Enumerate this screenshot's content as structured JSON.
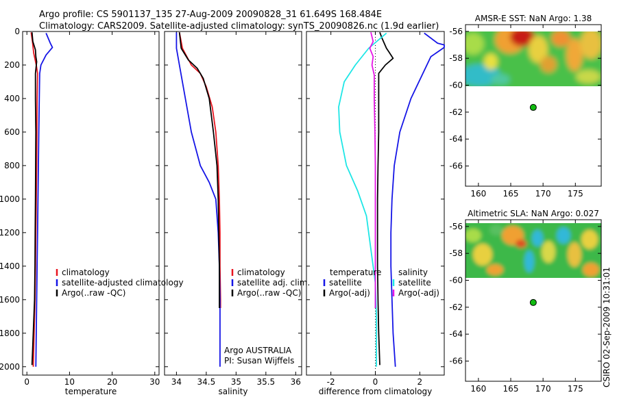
{
  "header": {
    "line1": "Argo profile: CS 5901137_135 27-Aug-2009 20090828_31 61.649S 168.484E",
    "line2": "Climatology: CARS2009. Satellite-adjusted climatology: synTS_20090826.nc (1.9d earlier)"
  },
  "footer": {
    "stamp": "CSIRO 02-Sep-2009 10:31:01"
  },
  "colors": {
    "red": "#e8141e",
    "blue": "#1414e6",
    "black": "#000000",
    "cyan": "#1ee6e6",
    "magenta": "#e614e6",
    "marker": "#11bb11"
  },
  "chart_data": [
    {
      "id": "temperature",
      "type": "line",
      "xlabel": "temperature",
      "xlim": [
        -1,
        31
      ],
      "ylim": [
        2050,
        0
      ],
      "xticks": [
        "0",
        "10",
        "20",
        "30"
      ],
      "yticks": [
        "0",
        "200",
        "400",
        "600",
        "800",
        "1000",
        "1200",
        "1400",
        "1600",
        "1800",
        "2000"
      ],
      "legend": [
        "climatology",
        "satellite-adjusted climatology",
        "Argo(..raw -QC)"
      ],
      "legend_placement": "lower-right",
      "series": [
        {
          "name": "climatology",
          "color": "red",
          "points": [
            [
              1.0,
              5
            ],
            [
              1.3,
              60
            ],
            [
              1.6,
              130
            ],
            [
              2.2,
              200
            ],
            [
              2.5,
              250
            ],
            [
              2.4,
              400
            ],
            [
              2.35,
              600
            ],
            [
              2.3,
              800
            ],
            [
              2.2,
              1000
            ],
            [
              2.1,
              1200
            ],
            [
              2.0,
              1400
            ],
            [
              1.9,
              1600
            ],
            [
              1.7,
              1800
            ],
            [
              1.5,
              2000
            ]
          ]
        },
        {
          "name": "satellite-adjusted climatology",
          "color": "blue",
          "points": [
            [
              4.5,
              10
            ],
            [
              5.5,
              70
            ],
            [
              6.0,
              95
            ],
            [
              4.5,
              140
            ],
            [
              3.3,
              200
            ],
            [
              3.0,
              250
            ],
            [
              2.9,
              400
            ],
            [
              2.8,
              600
            ],
            [
              2.7,
              800
            ],
            [
              2.6,
              1000
            ],
            [
              2.5,
              1200
            ],
            [
              2.4,
              1400
            ],
            [
              2.3,
              1600
            ],
            [
              2.2,
              1800
            ],
            [
              2.1,
              2000
            ]
          ]
        },
        {
          "name": "Argo(..raw -QC)",
          "color": "black",
          "points": [
            [
              1.2,
              5
            ],
            [
              1.4,
              60
            ],
            [
              2.0,
              110
            ],
            [
              2.1,
              150
            ],
            [
              2.3,
              180
            ],
            [
              2.0,
              250
            ],
            [
              2.0,
              400
            ],
            [
              2.1,
              600
            ],
            [
              2.05,
              800
            ],
            [
              2.0,
              1000
            ],
            [
              1.95,
              1200
            ],
            [
              1.9,
              1400
            ],
            [
              1.8,
              1600
            ],
            [
              1.5,
              1800
            ],
            [
              1.2,
              1990
            ]
          ]
        }
      ]
    },
    {
      "id": "salinity",
      "type": "line",
      "xlabel": "salinity",
      "xlim": [
        33.8,
        36.1
      ],
      "ylim": [
        2050,
        0
      ],
      "xticks": [
        "34",
        "34.5",
        "35",
        "35.5",
        "36"
      ],
      "legend": [
        "climatology",
        "satellite adj. clim.",
        "Argo(..raw -QC)"
      ],
      "legend_placement": "lower-right",
      "annotation": [
        "Argo AUSTRALIA",
        "PI: Susan Wijffels"
      ],
      "series": [
        {
          "name": "climatology",
          "color": "red",
          "points": [
            [
              34.05,
              5
            ],
            [
              34.1,
              100
            ],
            [
              34.25,
              200
            ],
            [
              34.4,
              250
            ],
            [
              34.5,
              330
            ],
            [
              34.6,
              450
            ],
            [
              34.66,
              600
            ],
            [
              34.7,
              800
            ],
            [
              34.72,
              1000
            ],
            [
              34.73,
              1200
            ],
            [
              34.73,
              1400
            ],
            [
              34.74,
              1600
            ],
            [
              34.74,
              1650
            ]
          ]
        },
        {
          "name": "satellite adj. clim.",
          "color": "blue",
          "points": [
            [
              34.0,
              5
            ],
            [
              34.0,
              100
            ],
            [
              34.05,
              200
            ],
            [
              34.15,
              400
            ],
            [
              34.25,
              600
            ],
            [
              34.4,
              800
            ],
            [
              34.55,
              900
            ],
            [
              34.66,
              1000
            ],
            [
              34.7,
              1200
            ],
            [
              34.72,
              1400
            ],
            [
              34.73,
              1600
            ],
            [
              34.73,
              1800
            ],
            [
              34.73,
              2000
            ]
          ]
        },
        {
          "name": "Argo(..raw -QC)",
          "color": "black",
          "points": [
            [
              34.05,
              5
            ],
            [
              34.08,
              100
            ],
            [
              34.2,
              170
            ],
            [
              34.35,
              220
            ],
            [
              34.45,
              280
            ],
            [
              34.55,
              400
            ],
            [
              34.62,
              600
            ],
            [
              34.68,
              800
            ],
            [
              34.7,
              1000
            ],
            [
              34.71,
              1200
            ],
            [
              34.72,
              1400
            ],
            [
              34.72,
              1650
            ]
          ]
        }
      ]
    },
    {
      "id": "difference",
      "type": "line",
      "xlabel": "difference from climatology",
      "xlim": [
        -3.1,
        3.1
      ],
      "ylim": [
        2050,
        0
      ],
      "xticks": [
        "-2",
        "0",
        "2"
      ],
      "legend_left_title": "temperature",
      "legend_right_title": "salinity",
      "legend_left": [
        "satellite",
        "Argo(-adj)"
      ],
      "legend_right": [
        "satellite",
        "Argo(-adj)"
      ],
      "series": [
        {
          "name": "temperature satellite",
          "color": "blue",
          "points": [
            [
              2.2,
              10
            ],
            [
              2.8,
              70
            ],
            [
              3.1,
              80
            ],
            [
              3.1,
              95
            ],
            [
              2.5,
              150
            ],
            [
              1.6,
              400
            ],
            [
              1.1,
              600
            ],
            [
              0.85,
              800
            ],
            [
              0.75,
              1000
            ],
            [
              0.7,
              1200
            ],
            [
              0.7,
              1400
            ],
            [
              0.75,
              1600
            ],
            [
              0.8,
              1800
            ],
            [
              0.9,
              2000
            ]
          ]
        },
        {
          "name": "temperature Argo(-adj)",
          "color": "black",
          "points": [
            [
              0.2,
              5
            ],
            [
              0.3,
              40
            ],
            [
              0.5,
              100
            ],
            [
              0.6,
              120
            ],
            [
              0.8,
              160
            ],
            [
              0.45,
              200
            ],
            [
              0.15,
              250
            ],
            [
              0.15,
              400
            ],
            [
              0.15,
              600
            ],
            [
              0.12,
              800
            ],
            [
              0.1,
              1000
            ],
            [
              0.1,
              1200
            ],
            [
              0.1,
              1400
            ],
            [
              0.12,
              1600
            ],
            [
              0.15,
              1800
            ],
            [
              0.2,
              1990
            ]
          ]
        },
        {
          "name": "salinity satellite",
          "color": "cyan",
          "points": [
            [
              0.5,
              10
            ],
            [
              -0.3,
              100
            ],
            [
              -0.9,
              200
            ],
            [
              -1.4,
              300
            ],
            [
              -1.65,
              450
            ],
            [
              -1.6,
              600
            ],
            [
              -1.3,
              800
            ],
            [
              -0.8,
              950
            ],
            [
              -0.4,
              1100
            ],
            [
              -0.2,
              1300
            ],
            [
              0,
              1500
            ],
            [
              0.05,
              1700
            ],
            [
              0.05,
              2000
            ]
          ]
        },
        {
          "name": "salinity Argo(-adj)",
          "color": "magenta",
          "points": [
            [
              -0.2,
              5
            ],
            [
              -0.1,
              60
            ],
            [
              -0.25,
              100
            ],
            [
              -0.1,
              150
            ],
            [
              -0.15,
              200
            ],
            [
              -0.05,
              260
            ],
            [
              -0.05,
              400
            ],
            [
              -0.02,
              600
            ],
            [
              0,
              800
            ],
            [
              0,
              1000
            ],
            [
              0,
              1200
            ],
            [
              0,
              1400
            ],
            [
              0,
              1600
            ],
            [
              0,
              1650
            ]
          ]
        }
      ]
    },
    {
      "id": "sst_map",
      "type": "heatmap",
      "title": "AMSR-E SST: NaN Argo: 1.38",
      "xlim": [
        158,
        179
      ],
      "ylim": [
        -67.5,
        -55.5
      ],
      "xticks": [
        "160",
        "165",
        "170",
        "175"
      ],
      "yticks": [
        "-56",
        "-58",
        "-60",
        "-62",
        "-64",
        "-66"
      ],
      "data_extent_lat": [
        -60,
        -56
      ],
      "marker": [
        168.484,
        -61.649
      ]
    },
    {
      "id": "sla_map",
      "type": "heatmap",
      "title": "Altimetric SLA: NaN Argo: 0.027",
      "xlim": [
        158,
        179
      ],
      "ylim": [
        -67.5,
        -55.5
      ],
      "xticks": [
        "160",
        "165",
        "170",
        "175"
      ],
      "yticks": [
        "-56",
        "-58",
        "-60",
        "-62",
        "-64",
        "-66"
      ],
      "data_extent_lat": [
        -60,
        -56
      ],
      "marker": [
        168.484,
        -61.649
      ]
    }
  ]
}
